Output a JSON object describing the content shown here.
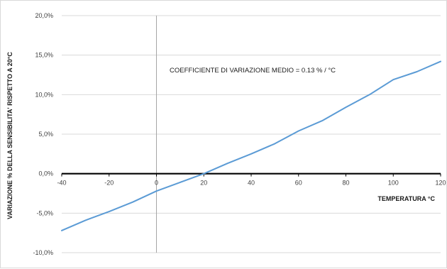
{
  "chart_data": {
    "type": "line",
    "title": "",
    "xlabel": "TEMPERATURA °C",
    "ylabel": "VARIAZIONE % DELLA SENSIBILITA' RISPETTO A 20°C",
    "xlim": [
      -40,
      120
    ],
    "ylim": [
      -10,
      20
    ],
    "x_ticks": [
      -40,
      -20,
      0,
      20,
      40,
      60,
      80,
      100,
      120
    ],
    "x_tick_labels": [
      "-40",
      "-20",
      "0",
      "20",
      "40",
      "60",
      "80",
      "100",
      "120"
    ],
    "y_ticks": [
      -10,
      -5,
      0,
      5,
      10,
      15,
      20
    ],
    "y_tick_labels": [
      "-10,0%",
      "-5,0%",
      "0,0%",
      "5,0%",
      "10,0%",
      "15,0%",
      "20,0%"
    ],
    "grid": "horizontal",
    "legend": "none",
    "annotation": "COEFFICIENTE DI VARIAZIONE MEDIO  = 0.13 % / °C",
    "series": [
      {
        "color": "#5b9bd5",
        "x": [
          -40,
          -30,
          -20,
          -10,
          0,
          10,
          20,
          30,
          40,
          50,
          60,
          70,
          80,
          90,
          100,
          110,
          120
        ],
        "y": [
          -7.2,
          -5.9,
          -4.8,
          -3.6,
          -2.2,
          -1.1,
          0.0,
          1.3,
          2.5,
          3.8,
          5.4,
          6.7,
          8.4,
          10.0,
          11.9,
          12.9,
          14.2
        ]
      }
    ],
    "colors": {
      "gridline": "#d9d9d9",
      "zero_axis": "#000000",
      "vertical_axis": "#a6a6a6"
    }
  }
}
